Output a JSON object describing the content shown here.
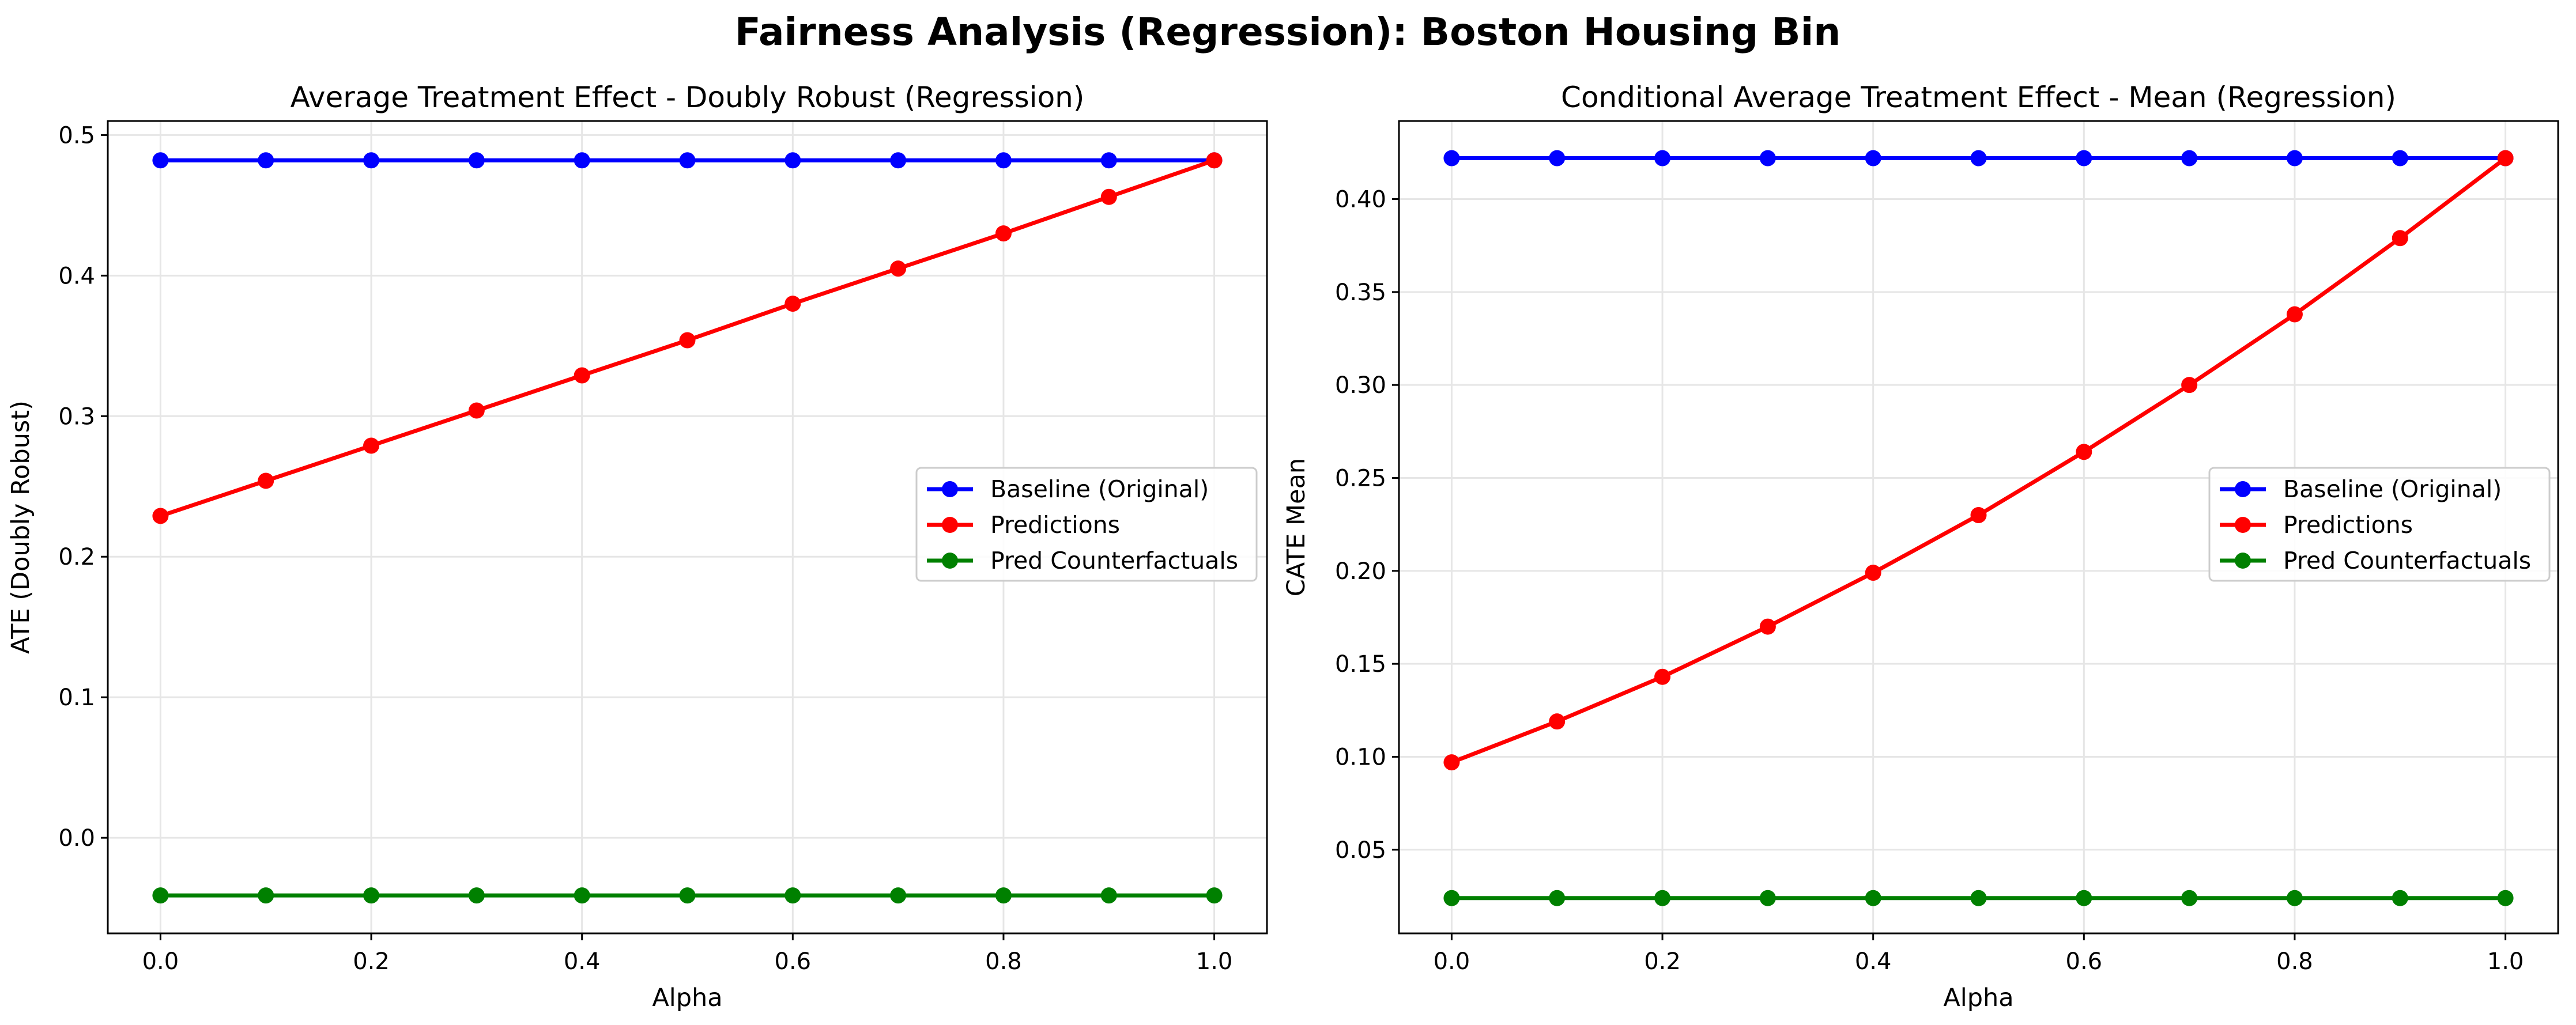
{
  "suptitle": "Fairness Analysis (Regression): Boston Housing Bin",
  "colors": {
    "baseline": "#0000ff",
    "predictions": "#ff0000",
    "counterfactuals": "#008000",
    "grid": "#e6e6e6",
    "axes": "#000000"
  },
  "chart_data": [
    {
      "type": "line",
      "title": "Average Treatment Effect - Doubly Robust (Regression)",
      "xlabel": "Alpha",
      "ylabel": "ATE (Doubly Robust)",
      "xlim": [
        -0.05,
        1.05
      ],
      "ylim": [
        -0.068,
        0.51
      ],
      "xticks": [
        0.0,
        0.2,
        0.4,
        0.6,
        0.8,
        1.0
      ],
      "xticklabels": [
        "0.0",
        "0.2",
        "0.4",
        "0.6",
        "0.8",
        "1.0"
      ],
      "yticks": [
        0.0,
        0.1,
        0.2,
        0.3,
        0.4,
        0.5
      ],
      "yticklabels": [
        "0.0",
        "0.1",
        "0.2",
        "0.3",
        "0.4",
        "0.5"
      ],
      "grid": true,
      "legend_position": "center-right",
      "x": [
        0.0,
        0.1,
        0.2,
        0.3,
        0.4,
        0.5,
        0.6,
        0.7,
        0.8,
        0.9,
        1.0
      ],
      "series": [
        {
          "name": "Baseline (Original)",
          "color": "#0000ff",
          "values": [
            0.482,
            0.482,
            0.482,
            0.482,
            0.482,
            0.482,
            0.482,
            0.482,
            0.482,
            0.482,
            0.482
          ]
        },
        {
          "name": "Predictions",
          "color": "#ff0000",
          "values": [
            0.229,
            0.254,
            0.279,
            0.304,
            0.329,
            0.354,
            0.38,
            0.405,
            0.43,
            0.456,
            0.482
          ]
        },
        {
          "name": "Pred Counterfactuals",
          "color": "#008000",
          "values": [
            -0.041,
            -0.041,
            -0.041,
            -0.041,
            -0.041,
            -0.041,
            -0.041,
            -0.041,
            -0.041,
            -0.041,
            -0.041
          ]
        }
      ]
    },
    {
      "type": "line",
      "title": "Conditional Average Treatment Effect - Mean (Regression)",
      "xlabel": "Alpha",
      "ylabel": "CATE Mean",
      "xlim": [
        -0.05,
        1.05
      ],
      "ylim": [
        0.005,
        0.442
      ],
      "xticks": [
        0.0,
        0.2,
        0.4,
        0.6,
        0.8,
        1.0
      ],
      "xticklabels": [
        "0.0",
        "0.2",
        "0.4",
        "0.6",
        "0.8",
        "1.0"
      ],
      "yticks": [
        0.05,
        0.1,
        0.15,
        0.2,
        0.25,
        0.3,
        0.35,
        0.4
      ],
      "yticklabels": [
        "0.05",
        "0.10",
        "0.15",
        "0.20",
        "0.25",
        "0.30",
        "0.35",
        "0.40"
      ],
      "grid": true,
      "legend_position": "center-right",
      "x": [
        0.0,
        0.1,
        0.2,
        0.3,
        0.4,
        0.5,
        0.6,
        0.7,
        0.8,
        0.9,
        1.0
      ],
      "series": [
        {
          "name": "Baseline (Original)",
          "color": "#0000ff",
          "values": [
            0.422,
            0.422,
            0.422,
            0.422,
            0.422,
            0.422,
            0.422,
            0.422,
            0.422,
            0.422,
            0.422
          ]
        },
        {
          "name": "Predictions",
          "color": "#ff0000",
          "values": [
            0.097,
            0.119,
            0.143,
            0.17,
            0.199,
            0.23,
            0.264,
            0.3,
            0.338,
            0.379,
            0.422
          ]
        },
        {
          "name": "Pred Counterfactuals",
          "color": "#008000",
          "values": [
            0.024,
            0.024,
            0.024,
            0.024,
            0.024,
            0.024,
            0.024,
            0.024,
            0.024,
            0.024,
            0.024
          ]
        }
      ]
    }
  ]
}
